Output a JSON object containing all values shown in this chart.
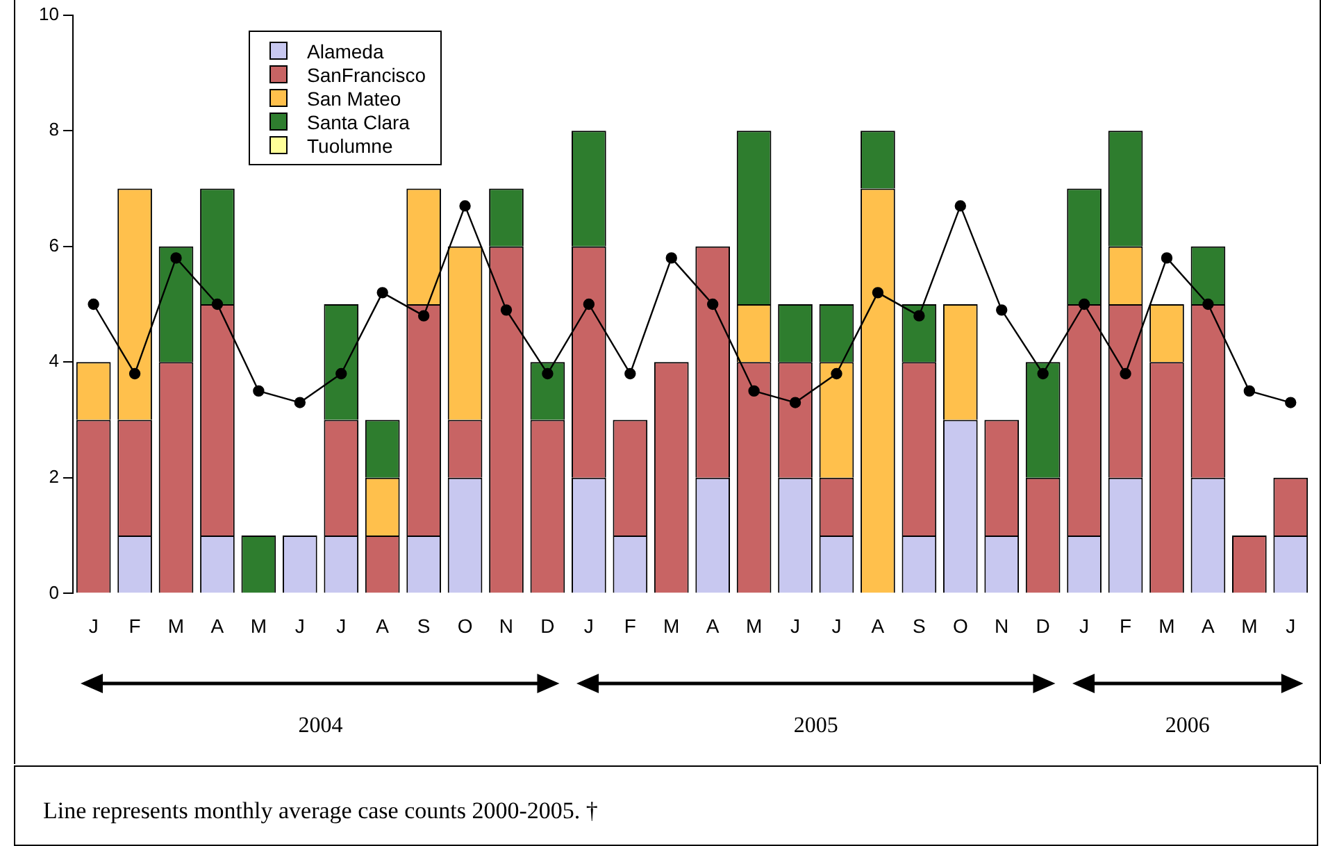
{
  "chart_data": {
    "type": "bar",
    "stacked": true,
    "legend": "top left",
    "marker": "circle",
    "categories": [
      "J",
      "F",
      "M",
      "A",
      "M",
      "J",
      "J",
      "A",
      "S",
      "O",
      "N",
      "D",
      "J",
      "F",
      "M",
      "A",
      "M",
      "J",
      "J",
      "A",
      "S",
      "O",
      "N",
      "D",
      "J",
      "F",
      "M",
      "A",
      "M",
      "J"
    ],
    "ylim": [
      0,
      10
    ],
    "yticks": [
      0,
      2,
      4,
      6,
      8,
      10
    ],
    "series": [
      {
        "name": "Alameda",
        "color": "#c8c8f0",
        "values": [
          0,
          1,
          0,
          1,
          0,
          1,
          1,
          0,
          1,
          2,
          0,
          0,
          2,
          1,
          0,
          2,
          0,
          2,
          1,
          0,
          1,
          3,
          1,
          0,
          1,
          2,
          0,
          2,
          0,
          1
        ]
      },
      {
        "name": "SanFrancisco",
        "color": "#c86464",
        "values": [
          3,
          2,
          4,
          4,
          0,
          0,
          2,
          1,
          4,
          1,
          6,
          3,
          4,
          2,
          4,
          4,
          4,
          2,
          1,
          0,
          3,
          0,
          2,
          2,
          4,
          3,
          4,
          3,
          1,
          1
        ]
      },
      {
        "name": "San Mateo",
        "color": "#ffc04c",
        "values": [
          1,
          4,
          0,
          0,
          0,
          0,
          0,
          1,
          2,
          3,
          0,
          0,
          0,
          0,
          0,
          0,
          1,
          0,
          2,
          7,
          0,
          2,
          0,
          0,
          0,
          1,
          1,
          0,
          0,
          0
        ]
      },
      {
        "name": "Santa Clara",
        "color": "#2e7d2e",
        "values": [
          0,
          0,
          2,
          2,
          1,
          0,
          2,
          1,
          0,
          0,
          1,
          1,
          2,
          0,
          0,
          0,
          3,
          1,
          1,
          1,
          1,
          0,
          0,
          2,
          2,
          2,
          0,
          1,
          0,
          0
        ]
      },
      {
        "name": "Tuolumne",
        "color": "#ffff99",
        "values": [
          0,
          0,
          0,
          0,
          0,
          0,
          0,
          0,
          0,
          0,
          0,
          0,
          0,
          0,
          0,
          0,
          0,
          0,
          0,
          0,
          0,
          0,
          0,
          0,
          0,
          0,
          0,
          0,
          0,
          0
        ]
      },
      {
        "type": "line",
        "color": "#000000",
        "values": [
          5,
          3.8,
          5.8,
          5,
          3.5,
          3.3,
          3.8,
          5.2,
          4.8,
          6.7,
          4.9,
          3.8,
          5,
          3.8,
          5.8,
          5,
          3.5,
          3.3,
          3.8,
          5.2,
          4.8,
          6.7,
          4.9,
          3.8,
          5,
          3.8,
          5.8,
          5,
          3.5,
          3.3
        ]
      }
    ],
    "annotations": [
      "2004",
      "2005",
      "2006",
      "Line represents monthly average case counts 2000-2005. †"
    ]
  }
}
